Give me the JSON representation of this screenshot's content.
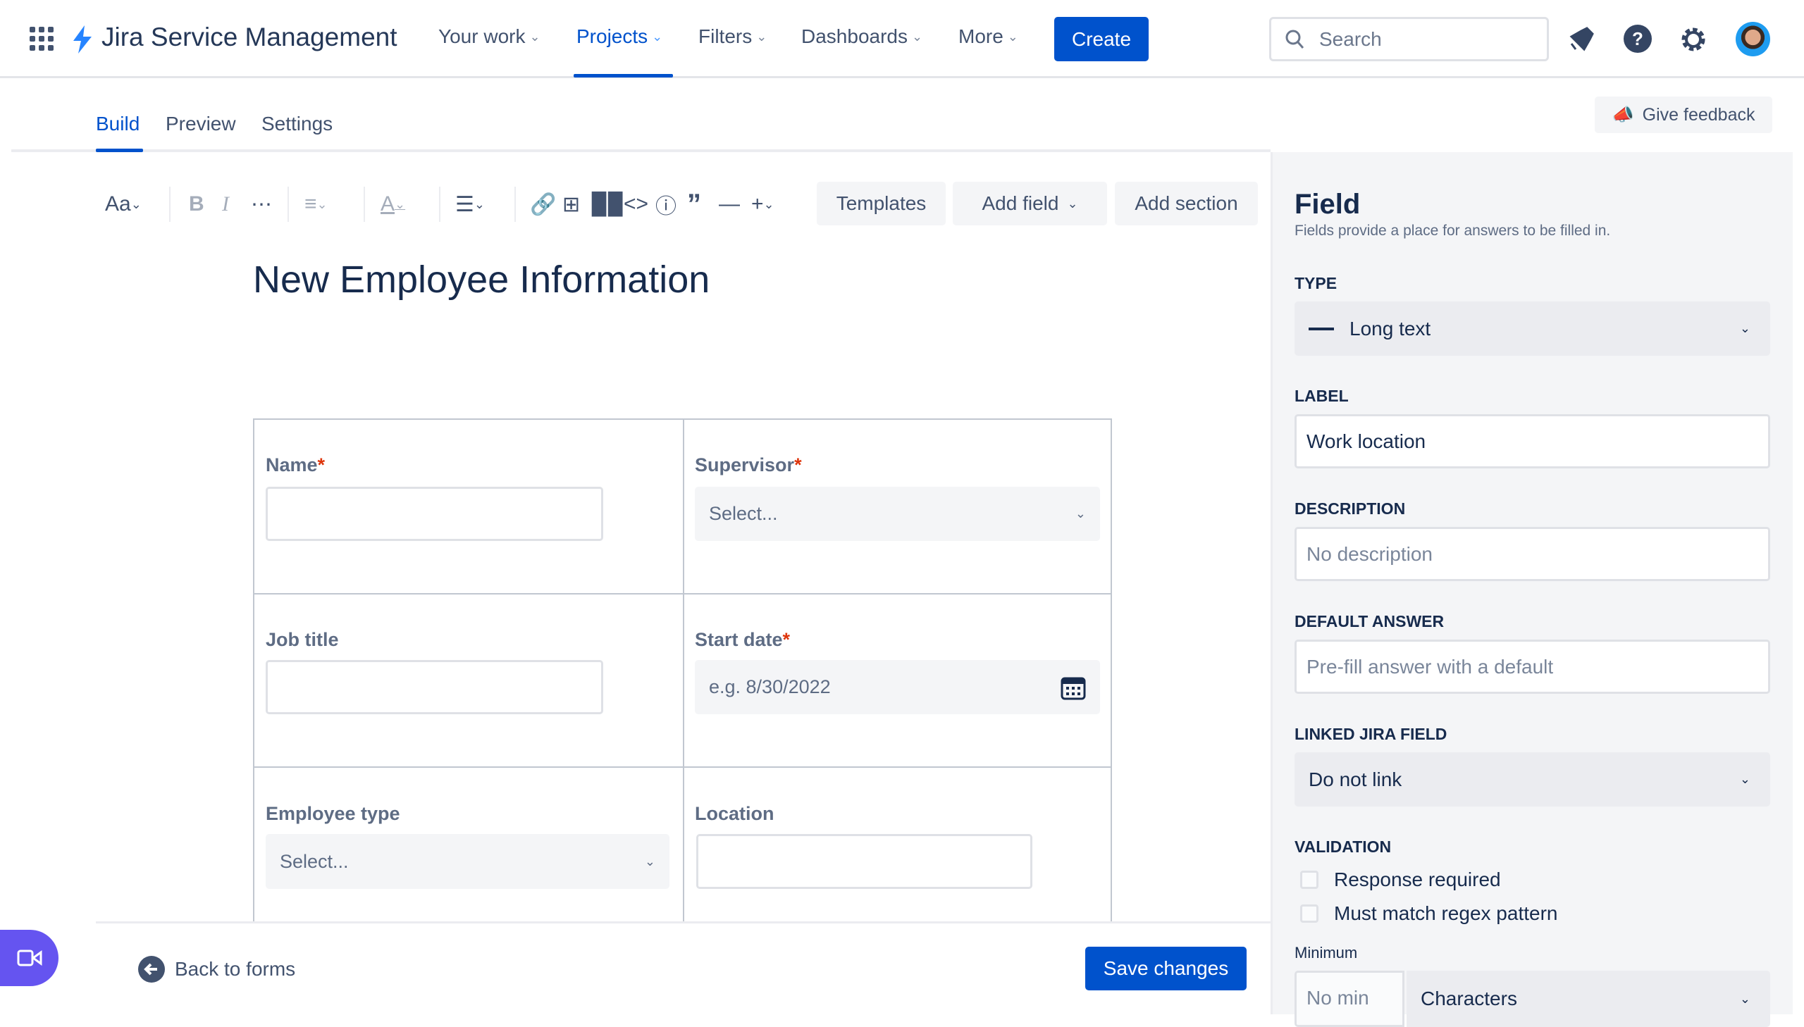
{
  "header": {
    "app_name": "Jira Service Management",
    "nav": [
      {
        "label": "Your work"
      },
      {
        "label": "Projects",
        "active": true
      },
      {
        "label": "Filters"
      },
      {
        "label": "Dashboards"
      },
      {
        "label": "More"
      }
    ],
    "create_label": "Create",
    "search_placeholder": "Search",
    "icons": [
      "app-switcher-icon",
      "bolt-logo-icon",
      "notifications-icon",
      "help-icon",
      "settings-icon",
      "avatar"
    ]
  },
  "tabs": [
    {
      "label": "Build",
      "active": true
    },
    {
      "label": "Preview"
    },
    {
      "label": "Settings"
    }
  ],
  "give_feedback_label": "Give feedback",
  "toolbar": {
    "text_style": "Aa",
    "templates_label": "Templates",
    "add_field_label": "Add field",
    "add_section_label": "Add section"
  },
  "form": {
    "title": "New Employee Information",
    "fields": [
      {
        "label": "Name",
        "required": true,
        "type": "text"
      },
      {
        "label": "Supervisor",
        "required": true,
        "type": "select",
        "placeholder": "Select..."
      },
      {
        "label": "Job title",
        "required": false,
        "type": "text"
      },
      {
        "label": "Start date",
        "required": true,
        "type": "date",
        "placeholder": "e.g. 8/30/2022"
      },
      {
        "label": "Employee type",
        "required": false,
        "type": "select",
        "placeholder": "Select..."
      },
      {
        "label": "Location",
        "required": false,
        "type": "text"
      }
    ],
    "required_mark": "*"
  },
  "footer": {
    "back_label": "Back to forms",
    "save_label": "Save changes"
  },
  "panel": {
    "title": "Field",
    "subtitle": "Fields provide a place for answers to be filled in.",
    "type_label": "TYPE",
    "type_value": "Long text",
    "label_label": "LABEL",
    "label_value": "Work location",
    "description_label": "DESCRIPTION",
    "description_placeholder": "No description",
    "default_label": "DEFAULT ANSWER",
    "default_placeholder": "Pre-fill answer with a default",
    "linked_label": "LINKED JIRA FIELD",
    "linked_value": "Do not link",
    "validation_label": "VALIDATION",
    "checks": [
      {
        "label": "Response required",
        "checked": false
      },
      {
        "label": "Must match regex pattern",
        "checked": false
      }
    ],
    "minimum_label": "Minimum",
    "min_placeholder": "No min",
    "unit_value": "Characters"
  },
  "colors": {
    "brand": "#0052cc",
    "video_button": "#6554f0"
  }
}
